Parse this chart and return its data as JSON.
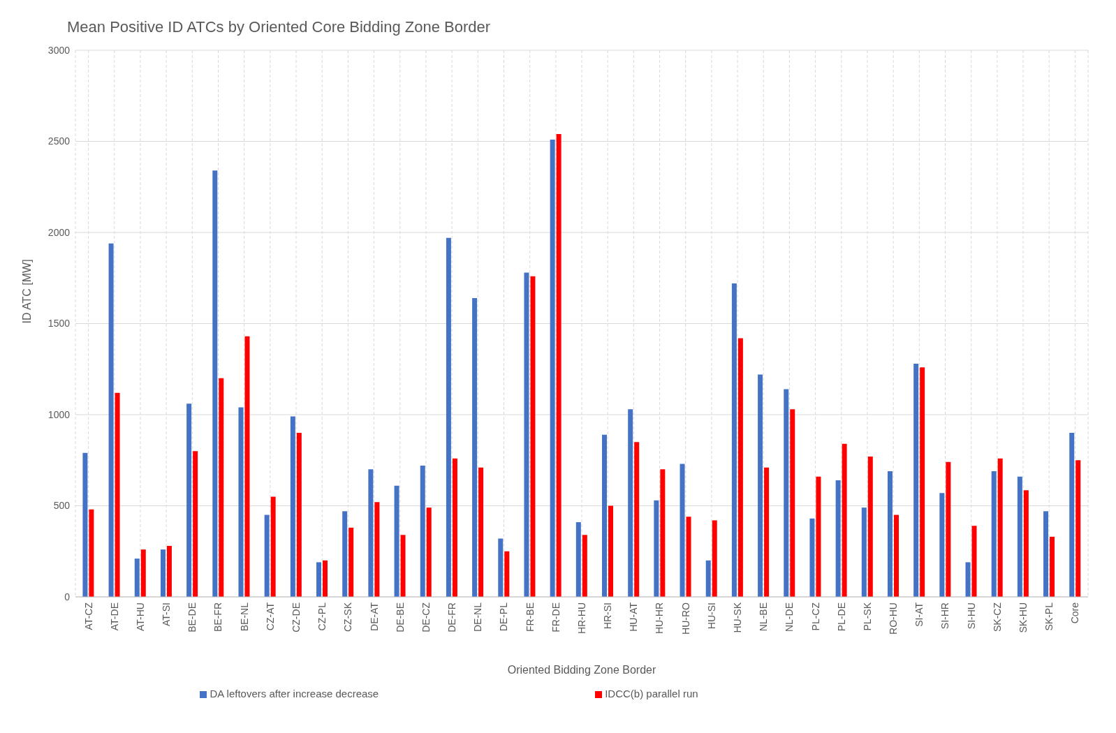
{
  "chart_data": {
    "type": "bar",
    "title": "Mean Positive ID ATCs by Oriented Core Bidding Zone Border",
    "xlabel": "Oriented Bidding Zone Border",
    "ylabel": "ID ATC [MW]",
    "categories": [
      "AT-CZ",
      "AT-DE",
      "AT-HU",
      "AT-SI",
      "BE-DE",
      "BE-FR",
      "BE-NL",
      "CZ-AT",
      "CZ-DE",
      "CZ-PL",
      "CZ-SK",
      "DE-AT",
      "DE-BE",
      "DE-CZ",
      "DE-FR",
      "DE-NL",
      "DE-PL",
      "FR-BE",
      "FR-DE",
      "HR-HU",
      "HR-SI",
      "HU-AT",
      "HU-HR",
      "HU-RO",
      "HU-SI",
      "HU-SK",
      "NL-BE",
      "NL-DE",
      "PL-CZ",
      "PL-DE",
      "PL-SK",
      "RO-HU",
      "SI-AT",
      "SI-HR",
      "SI-HU",
      "SK-CZ",
      "SK-HU",
      "SK-PL",
      "Core"
    ],
    "series": [
      {
        "name": "DA leftovers after increase decrease",
        "color": "#4472c4",
        "values": [
          790,
          1940,
          210,
          260,
          1060,
          2340,
          1040,
          450,
          990,
          190,
          470,
          700,
          610,
          720,
          1970,
          1640,
          320,
          1780,
          2510,
          410,
          890,
          1030,
          530,
          730,
          200,
          1720,
          1220,
          1140,
          430,
          640,
          490,
          690,
          1280,
          570,
          190,
          690,
          660,
          470,
          900
        ]
      },
      {
        "name": "IDCC(b) parallel run",
        "color": "#ff0000",
        "values": [
          480,
          1120,
          260,
          280,
          800,
          1200,
          1430,
          550,
          900,
          200,
          380,
          520,
          340,
          490,
          760,
          710,
          250,
          1760,
          2540,
          340,
          500,
          850,
          700,
          440,
          420,
          1420,
          710,
          1030,
          660,
          840,
          770,
          450,
          1260,
          740,
          390,
          760,
          585,
          330,
          750
        ]
      }
    ],
    "ylim": [
      0,
      3000
    ],
    "yticks": [
      0,
      500,
      1000,
      1500,
      2000,
      2500,
      3000
    ],
    "grid": true,
    "legend": "bottom"
  }
}
